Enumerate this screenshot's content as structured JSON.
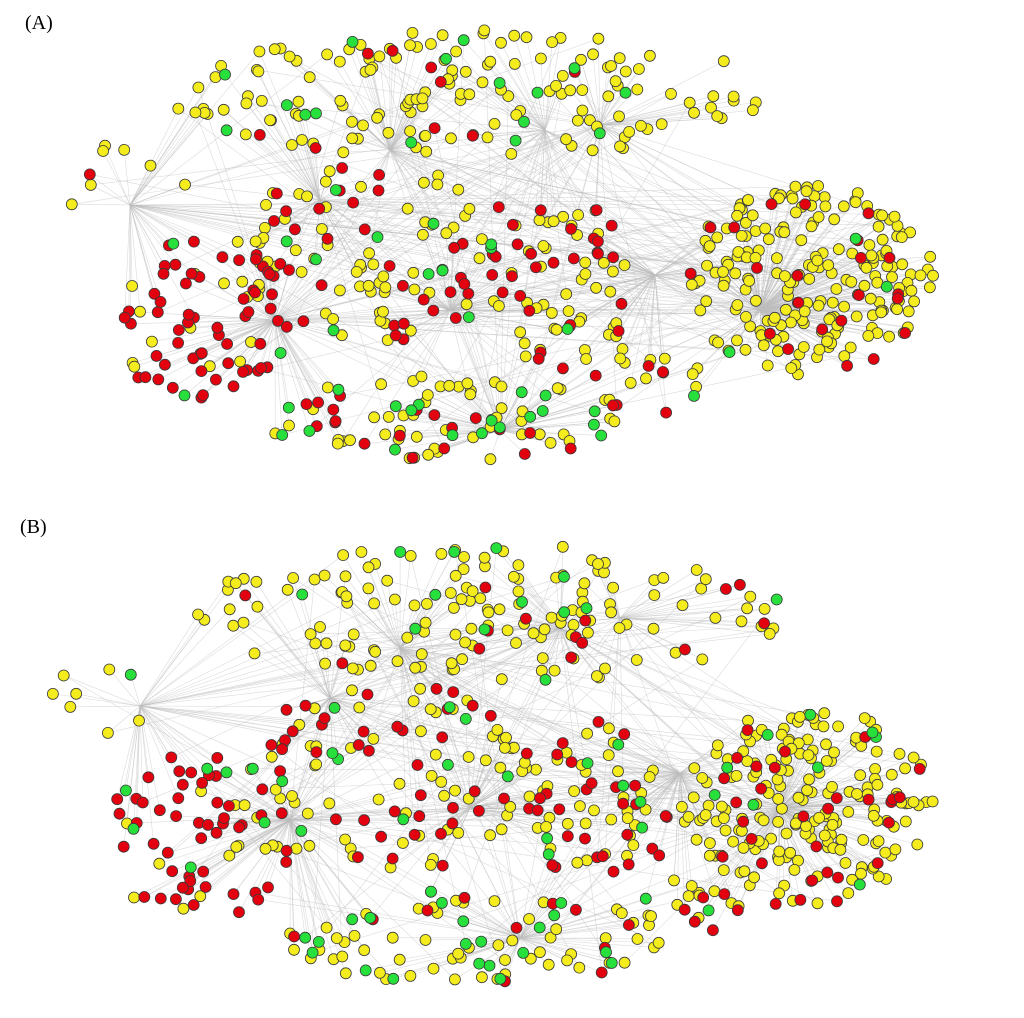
{
  "panels": [
    {
      "label": "(A)"
    },
    {
      "label": "(B)"
    }
  ],
  "legend_colors": {
    "yellow": "#f4ec1c",
    "red": "#e3000f",
    "green": "#28e03c"
  },
  "edge_color": "#bdbdbd",
  "node_stroke": "#3a3a3a"
}
